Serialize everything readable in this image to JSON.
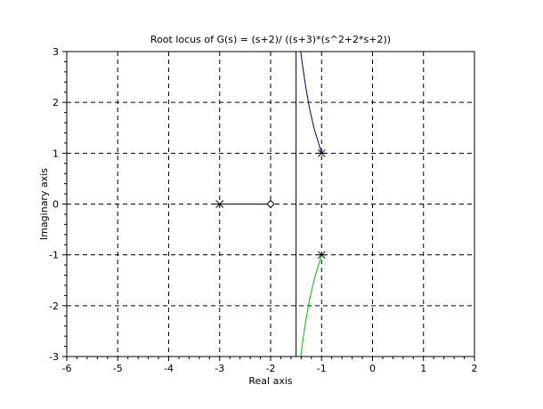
{
  "chart_data": {
    "type": "line",
    "title": "Root locus of G(s) = (s+2)/ ((s+3)*(s^2+2*s+2))",
    "xlabel": "Real axis",
    "ylabel": "Imaginary axis",
    "xlim": [
      -6,
      2
    ],
    "ylim": [
      -3,
      3
    ],
    "xticks": [
      -6,
      -5,
      -4,
      -3,
      -2,
      -1,
      0,
      1,
      2
    ],
    "yticks": [
      -3,
      -2,
      -1,
      0,
      1,
      2,
      3
    ],
    "grid": true,
    "asymptote_x": -1.5,
    "series": [
      {
        "color": "#000080",
        "points": [
          [
            -1,
            1
          ],
          [
            -1.06,
            1.2
          ],
          [
            -1.15,
            1.5
          ],
          [
            -1.24,
            1.9
          ],
          [
            -1.31,
            2.3
          ],
          [
            -1.37,
            2.7
          ],
          [
            -1.41,
            3.0
          ]
        ]
      },
      {
        "color": "#00c000",
        "points": [
          [
            -1,
            -1
          ],
          [
            -1.06,
            -1.2
          ],
          [
            -1.15,
            -1.5
          ],
          [
            -1.24,
            -1.9
          ],
          [
            -1.31,
            -2.3
          ],
          [
            -1.37,
            -2.7
          ],
          [
            -1.41,
            -3.0
          ]
        ]
      },
      {
        "color": "#000000",
        "points": [
          [
            -3,
            0
          ],
          [
            -2,
            0
          ]
        ]
      }
    ],
    "poles": [
      [
        -1,
        1
      ],
      [
        -1,
        -1
      ],
      [
        -3,
        0
      ]
    ],
    "zeros": [
      [
        -2,
        0
      ]
    ]
  }
}
